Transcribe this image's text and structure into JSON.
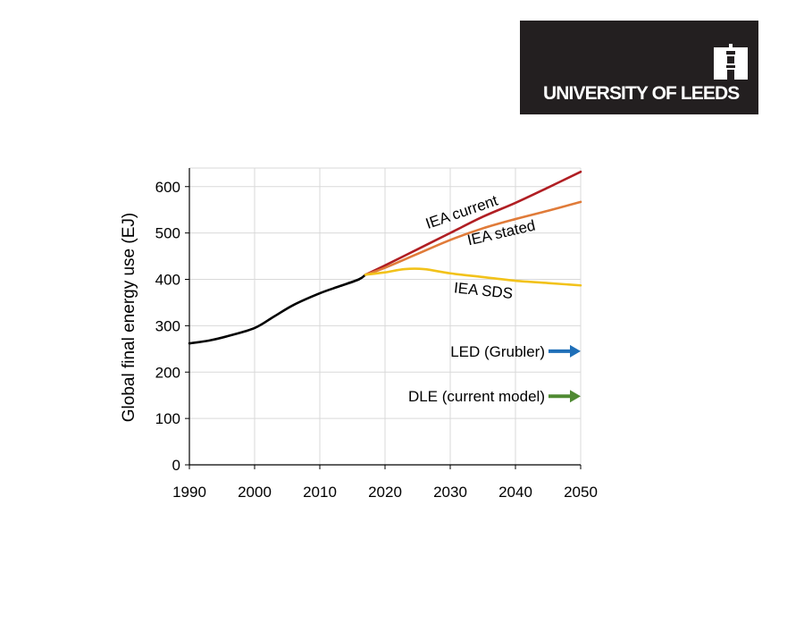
{
  "logo": {
    "text": "UNIVERSITY OF LEEDS"
  },
  "chart_data": {
    "type": "line",
    "title": "",
    "xlabel": "",
    "ylabel": "Global final energy use (EJ)",
    "xlim": [
      1990,
      2050
    ],
    "ylim": [
      0,
      640
    ],
    "x_ticks": [
      1990,
      2000,
      2010,
      2020,
      2030,
      2040,
      2050
    ],
    "y_ticks": [
      0,
      100,
      200,
      300,
      400,
      500,
      600
    ],
    "grid": true,
    "series": [
      {
        "name": "",
        "color": "#000000",
        "points": [
          [
            1990,
            262
          ],
          [
            1993,
            268
          ],
          [
            1996,
            278
          ],
          [
            2000,
            295
          ],
          [
            2003,
            320
          ],
          [
            2006,
            345
          ],
          [
            2010,
            370
          ],
          [
            2013,
            385
          ],
          [
            2016,
            400
          ],
          [
            2017,
            410
          ]
        ]
      },
      {
        "name": "IEA current",
        "color": "#b01e23",
        "points": [
          [
            2017,
            410
          ],
          [
            2020,
            430
          ],
          [
            2025,
            465
          ],
          [
            2030,
            500
          ],
          [
            2035,
            535
          ],
          [
            2040,
            565
          ],
          [
            2045,
            598
          ],
          [
            2050,
            632
          ]
        ]
      },
      {
        "name": "IEA stated",
        "color": "#e07b39",
        "points": [
          [
            2017,
            410
          ],
          [
            2020,
            425
          ],
          [
            2025,
            455
          ],
          [
            2030,
            485
          ],
          [
            2035,
            510
          ],
          [
            2040,
            530
          ],
          [
            2045,
            548
          ],
          [
            2050,
            567
          ]
        ]
      },
      {
        "name": "IEA SDS",
        "color": "#f2c21a",
        "points": [
          [
            2017,
            410
          ],
          [
            2020,
            415
          ],
          [
            2023,
            422
          ],
          [
            2026,
            422
          ],
          [
            2030,
            413
          ],
          [
            2035,
            405
          ],
          [
            2040,
            397
          ],
          [
            2045,
            392
          ],
          [
            2050,
            387
          ]
        ]
      }
    ],
    "annotations": [
      {
        "label": "LED (Grubler)",
        "x": 2050,
        "y": 245,
        "color": "#1f6fb8"
      },
      {
        "label": "DLE (current model)",
        "x": 2050,
        "y": 148,
        "color": "#4f8a32"
      }
    ],
    "series_labels": [
      {
        "text": "IEA current",
        "x": 2032,
        "y": 535,
        "angle": -19
      },
      {
        "text": "IEA stated",
        "x": 2038,
        "y": 490,
        "angle": -13
      },
      {
        "text": "IEA SDS",
        "x": 2035,
        "y": 365,
        "angle": 6
      }
    ]
  }
}
